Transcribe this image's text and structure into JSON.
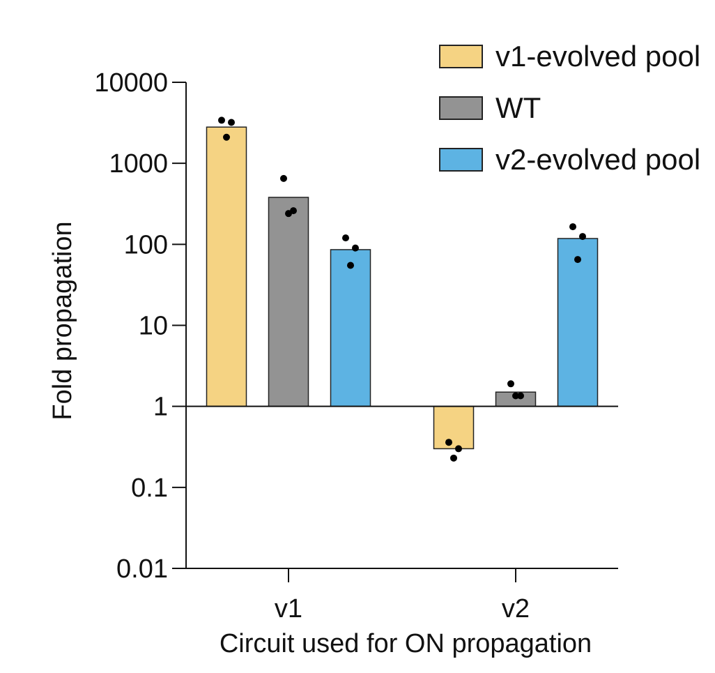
{
  "chart_data": {
    "type": "bar",
    "scale": "log",
    "title": "",
    "xlabel": "Circuit used for ON propagation",
    "ylabel": "Fold propagation",
    "ylim": [
      0.01,
      10000
    ],
    "baseline": 1,
    "yticks": [
      {
        "value": 10000,
        "label": "10000"
      },
      {
        "value": 1000,
        "label": "1000"
      },
      {
        "value": 100,
        "label": "100"
      },
      {
        "value": 10,
        "label": "10"
      },
      {
        "value": 1,
        "label": "1"
      },
      {
        "value": 0.1,
        "label": "0.1"
      },
      {
        "value": 0.01,
        "label": "0.01"
      }
    ],
    "categories": [
      "v1",
      "v2"
    ],
    "series": [
      {
        "name": "v1-evolved pool",
        "color": "#f5d383",
        "values": [
          2800,
          0.3
        ],
        "points": [
          [
            3400,
            3200,
            2100
          ],
          [
            0.36,
            0.3,
            0.23
          ]
        ]
      },
      {
        "name": "WT",
        "color": "#939393",
        "values": [
          380,
          1.5
        ],
        "points": [
          [
            650,
            260,
            240
          ],
          [
            1.9,
            1.35,
            1.35
          ]
        ]
      },
      {
        "name": "v2-evolved pool",
        "color": "#5db3e3",
        "values": [
          86,
          118
        ],
        "points": [
          [
            120,
            90,
            55
          ],
          [
            165,
            125,
            65
          ]
        ]
      }
    ],
    "legend": {
      "position": "top-right"
    }
  }
}
